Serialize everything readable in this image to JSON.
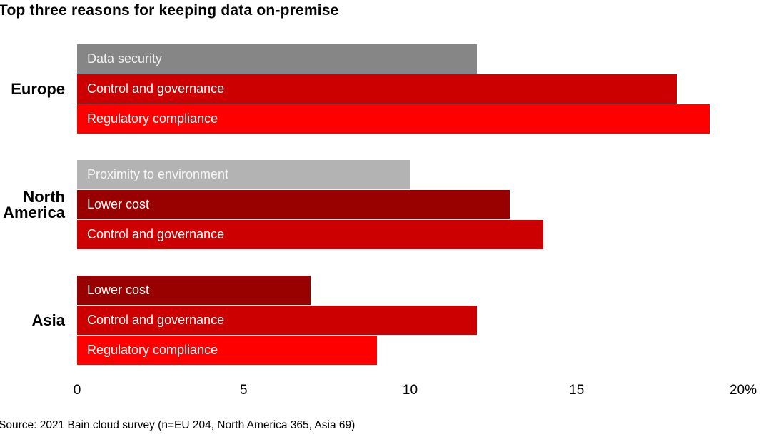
{
  "title": "Top three reasons for keeping data on-premise",
  "source": "Source: 2021 Bain cloud survey (n=EU 204, North America 365, Asia 69)",
  "colors": {
    "bright_red": "#ff0000",
    "bain_red": "#cc0000",
    "dark_red": "#990000",
    "dark_gray": "#868686",
    "light_gray": "#b3b3b3"
  },
  "chart_data": {
    "type": "bar",
    "orientation": "horizontal",
    "title": "Top three reasons for keeping data on-premise",
    "xlabel": "",
    "ylabel": "",
    "xlim": [
      0,
      20
    ],
    "grid": false,
    "legend": "none",
    "x_ticks": [
      {
        "label": "0",
        "value": 0
      },
      {
        "label": "5",
        "value": 5
      },
      {
        "label": "10",
        "value": 10
      },
      {
        "label": "15",
        "value": 15
      },
      {
        "label": "20%",
        "value": 20
      }
    ],
    "groups": [
      {
        "label": "Europe",
        "bars": [
          {
            "label": "Data security",
            "value": 12,
            "color": "#868686",
            "text_color": "#f2f2f2"
          },
          {
            "label": "Control and governance",
            "value": 18,
            "color": "#cc0000",
            "text_color": "#ffffff"
          },
          {
            "label": "Regulatory compliance",
            "value": 19,
            "color": "#ff0000",
            "text_color": "#ffffff"
          }
        ]
      },
      {
        "label": "North America",
        "bars": [
          {
            "label": "Proximity to environment",
            "value": 10,
            "color": "#b3b3b3",
            "text_color": "#f7f7f7"
          },
          {
            "label": "Lower cost",
            "value": 13,
            "color": "#990000",
            "text_color": "#ffffff"
          },
          {
            "label": "Control and governance",
            "value": 14,
            "color": "#cc0000",
            "text_color": "#ffffff"
          }
        ]
      },
      {
        "label": "Asia",
        "bars": [
          {
            "label": "Lower cost",
            "value": 7,
            "color": "#990000",
            "text_color": "#ffffff"
          },
          {
            "label": "Control and governance",
            "value": 12,
            "color": "#cc0000",
            "text_color": "#ffffff"
          },
          {
            "label": "Regulatory compliance",
            "value": 9,
            "color": "#ff0000",
            "text_color": "#ffffff"
          }
        ]
      }
    ]
  }
}
